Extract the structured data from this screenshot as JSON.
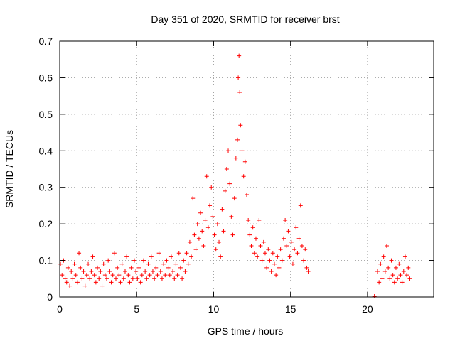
{
  "chart_data": {
    "type": "scatter",
    "title": "Day 351 of 2020, SRMTID for receiver brst",
    "xlabel": "GPS time / hours",
    "ylabel": "SRMTID / TECUs",
    "xlim": [
      0,
      24.3
    ],
    "ylim": [
      0,
      0.7
    ],
    "grid": true,
    "marker": "+",
    "color": "#ff0000",
    "x_ticks": [
      0,
      5,
      10,
      15,
      20
    ],
    "y_ticks": [
      0,
      0.1,
      0.2,
      0.3,
      0.4,
      0.5,
      0.6,
      0.7
    ],
    "x_tick_labels": [
      "0",
      "5",
      "10",
      "15",
      "20"
    ],
    "y_tick_labels": [
      "0",
      "0.1",
      "0.2",
      "0.3",
      "0.4",
      "0.5",
      "0.6",
      "0.7"
    ],
    "series": [
      {
        "name": "SRMTID",
        "points": [
          [
            0.05,
            0.09
          ],
          [
            0.15,
            0.06
          ],
          [
            0.25,
            0.1
          ],
          [
            0.35,
            0.05
          ],
          [
            0.45,
            0.04
          ],
          [
            0.55,
            0.08
          ],
          [
            0.65,
            0.03
          ],
          [
            0.75,
            0.07
          ],
          [
            0.85,
            0.05
          ],
          [
            0.95,
            0.09
          ],
          [
            1.05,
            0.06
          ],
          [
            1.15,
            0.04
          ],
          [
            1.25,
            0.12
          ],
          [
            1.35,
            0.08
          ],
          [
            1.45,
            0.05
          ],
          [
            1.55,
            0.07
          ],
          [
            1.65,
            0.03
          ],
          [
            1.75,
            0.06
          ],
          [
            1.85,
            0.09
          ],
          [
            1.95,
            0.05
          ],
          [
            2.05,
            0.07
          ],
          [
            2.15,
            0.11
          ],
          [
            2.25,
            0.06
          ],
          [
            2.35,
            0.04
          ],
          [
            2.45,
            0.08
          ],
          [
            2.55,
            0.05
          ],
          [
            2.65,
            0.07
          ],
          [
            2.75,
            0.03
          ],
          [
            2.85,
            0.09
          ],
          [
            2.95,
            0.06
          ],
          [
            3.05,
            0.05
          ],
          [
            3.15,
            0.1
          ],
          [
            3.25,
            0.07
          ],
          [
            3.35,
            0.04
          ],
          [
            3.45,
            0.06
          ],
          [
            3.55,
            0.12
          ],
          [
            3.65,
            0.05
          ],
          [
            3.75,
            0.08
          ],
          [
            3.85,
            0.06
          ],
          [
            3.95,
            0.04
          ],
          [
            4.05,
            0.09
          ],
          [
            4.15,
            0.05
          ],
          [
            4.25,
            0.07
          ],
          [
            4.35,
            0.11
          ],
          [
            4.45,
            0.06
          ],
          [
            4.55,
            0.04
          ],
          [
            4.65,
            0.08
          ],
          [
            4.75,
            0.05
          ],
          [
            4.85,
            0.1
          ],
          [
            4.95,
            0.07
          ],
          [
            5.05,
            0.05
          ],
          [
            5.15,
            0.08
          ],
          [
            5.25,
            0.04
          ],
          [
            5.35,
            0.06
          ],
          [
            5.45,
            0.1
          ],
          [
            5.55,
            0.07
          ],
          [
            5.65,
            0.05
          ],
          [
            5.75,
            0.09
          ],
          [
            5.85,
            0.06
          ],
          [
            5.95,
            0.11
          ],
          [
            6.05,
            0.07
          ],
          [
            6.15,
            0.05
          ],
          [
            6.25,
            0.08
          ],
          [
            6.35,
            0.06
          ],
          [
            6.45,
            0.12
          ],
          [
            6.55,
            0.07
          ],
          [
            6.65,
            0.05
          ],
          [
            6.75,
            0.09
          ],
          [
            6.85,
            0.06
          ],
          [
            6.95,
            0.1
          ],
          [
            7.05,
            0.08
          ],
          [
            7.15,
            0.06
          ],
          [
            7.25,
            0.11
          ],
          [
            7.35,
            0.07
          ],
          [
            7.45,
            0.05
          ],
          [
            7.55,
            0.09
          ],
          [
            7.65,
            0.06
          ],
          [
            7.75,
            0.12
          ],
          [
            7.85,
            0.08
          ],
          [
            7.95,
            0.05
          ],
          [
            8.05,
            0.1
          ],
          [
            8.15,
            0.07
          ],
          [
            8.25,
            0.12
          ],
          [
            8.35,
            0.09
          ],
          [
            8.45,
            0.15
          ],
          [
            8.55,
            0.11
          ],
          [
            8.65,
            0.27
          ],
          [
            8.75,
            0.17
          ],
          [
            8.85,
            0.13
          ],
          [
            8.95,
            0.2
          ],
          [
            9.05,
            0.16
          ],
          [
            9.15,
            0.23
          ],
          [
            9.25,
            0.18
          ],
          [
            9.35,
            0.14
          ],
          [
            9.45,
            0.21
          ],
          [
            9.55,
            0.33
          ],
          [
            9.65,
            0.19
          ],
          [
            9.75,
            0.25
          ],
          [
            9.85,
            0.3
          ],
          [
            9.95,
            0.22
          ],
          [
            10.05,
            0.17
          ],
          [
            10.15,
            0.13
          ],
          [
            10.25,
            0.2
          ],
          [
            10.35,
            0.15
          ],
          [
            10.45,
            0.11
          ],
          [
            10.55,
            0.24
          ],
          [
            10.65,
            0.18
          ],
          [
            10.75,
            0.29
          ],
          [
            10.85,
            0.35
          ],
          [
            10.95,
            0.4
          ],
          [
            11.05,
            0.31
          ],
          [
            11.15,
            0.22
          ],
          [
            11.25,
            0.17
          ],
          [
            11.35,
            0.27
          ],
          [
            11.45,
            0.38
          ],
          [
            11.55,
            0.43
          ],
          [
            11.6,
            0.6
          ],
          [
            11.65,
            0.66
          ],
          [
            11.7,
            0.56
          ],
          [
            11.75,
            0.47
          ],
          [
            11.85,
            0.4
          ],
          [
            11.95,
            0.33
          ],
          [
            12.05,
            0.37
          ],
          [
            12.15,
            0.28
          ],
          [
            12.25,
            0.21
          ],
          [
            12.35,
            0.17
          ],
          [
            12.45,
            0.14
          ],
          [
            12.55,
            0.19
          ],
          [
            12.65,
            0.12
          ],
          [
            12.75,
            0.16
          ],
          [
            12.85,
            0.11
          ],
          [
            12.95,
            0.21
          ],
          [
            13.05,
            0.14
          ],
          [
            13.15,
            0.1
          ],
          [
            13.25,
            0.15
          ],
          [
            13.35,
            0.12
          ],
          [
            13.45,
            0.08
          ],
          [
            13.55,
            0.13
          ],
          [
            13.65,
            0.1
          ],
          [
            13.75,
            0.07
          ],
          [
            13.85,
            0.12
          ],
          [
            13.95,
            0.09
          ],
          [
            14.05,
            0.06
          ],
          [
            14.15,
            0.11
          ],
          [
            14.25,
            0.08
          ],
          [
            14.35,
            0.13
          ],
          [
            14.45,
            0.1
          ],
          [
            14.55,
            0.16
          ],
          [
            14.65,
            0.21
          ],
          [
            14.75,
            0.14
          ],
          [
            14.85,
            0.18
          ],
          [
            14.95,
            0.11
          ],
          [
            15.05,
            0.15
          ],
          [
            15.15,
            0.09
          ],
          [
            15.25,
            0.13
          ],
          [
            15.35,
            0.19
          ],
          [
            15.45,
            0.12
          ],
          [
            15.55,
            0.16
          ],
          [
            15.65,
            0.25
          ],
          [
            15.75,
            0.14
          ],
          [
            15.85,
            0.1
          ],
          [
            15.95,
            0.13
          ],
          [
            16.05,
            0.08
          ],
          [
            16.15,
            0.07
          ],
          [
            20.45,
            0.002
          ],
          [
            20.65,
            0.07
          ],
          [
            20.75,
            0.04
          ],
          [
            20.85,
            0.09
          ],
          [
            20.95,
            0.05
          ],
          [
            21.05,
            0.11
          ],
          [
            21.15,
            0.07
          ],
          [
            21.25,
            0.14
          ],
          [
            21.35,
            0.08
          ],
          [
            21.45,
            0.05
          ],
          [
            21.55,
            0.1
          ],
          [
            21.65,
            0.06
          ],
          [
            21.75,
            0.04
          ],
          [
            21.85,
            0.08
          ],
          [
            21.95,
            0.05
          ],
          [
            22.05,
            0.09
          ],
          [
            22.15,
            0.06
          ],
          [
            22.25,
            0.04
          ],
          [
            22.35,
            0.07
          ],
          [
            22.45,
            0.11
          ],
          [
            22.55,
            0.06
          ],
          [
            22.65,
            0.08
          ],
          [
            22.75,
            0.05
          ]
        ]
      }
    ]
  }
}
